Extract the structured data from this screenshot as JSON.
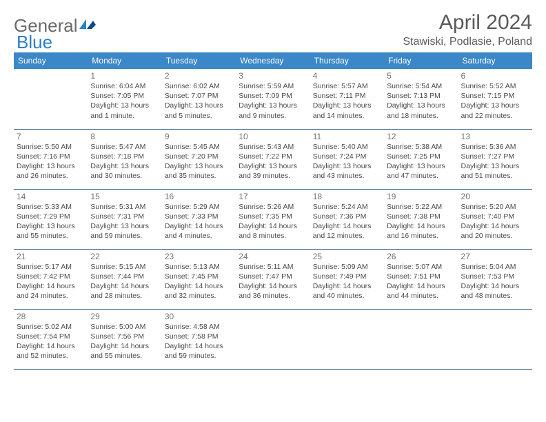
{
  "brand": {
    "part1": "General",
    "part2": "Blue"
  },
  "title": "April 2024",
  "location": "Stawiski, Podlasie, Poland",
  "colors": {
    "header_bg": "#3b87c8",
    "header_text": "#ffffff",
    "row_border": "#3b6a96",
    "text": "#4a4a4a",
    "page_bg": "#ffffff",
    "logo_blue": "#2a7fc9"
  },
  "weekdays": [
    "Sunday",
    "Monday",
    "Tuesday",
    "Wednesday",
    "Thursday",
    "Friday",
    "Saturday"
  ],
  "weeks": [
    [
      null,
      {
        "n": "1",
        "sr": "6:04 AM",
        "ss": "7:05 PM",
        "dl": "13 hours and 1 minute."
      },
      {
        "n": "2",
        "sr": "6:02 AM",
        "ss": "7:07 PM",
        "dl": "13 hours and 5 minutes."
      },
      {
        "n": "3",
        "sr": "5:59 AM",
        "ss": "7:09 PM",
        "dl": "13 hours and 9 minutes."
      },
      {
        "n": "4",
        "sr": "5:57 AM",
        "ss": "7:11 PM",
        "dl": "13 hours and 14 minutes."
      },
      {
        "n": "5",
        "sr": "5:54 AM",
        "ss": "7:13 PM",
        "dl": "13 hours and 18 minutes."
      },
      {
        "n": "6",
        "sr": "5:52 AM",
        "ss": "7:15 PM",
        "dl": "13 hours and 22 minutes."
      }
    ],
    [
      {
        "n": "7",
        "sr": "5:50 AM",
        "ss": "7:16 PM",
        "dl": "13 hours and 26 minutes."
      },
      {
        "n": "8",
        "sr": "5:47 AM",
        "ss": "7:18 PM",
        "dl": "13 hours and 30 minutes."
      },
      {
        "n": "9",
        "sr": "5:45 AM",
        "ss": "7:20 PM",
        "dl": "13 hours and 35 minutes."
      },
      {
        "n": "10",
        "sr": "5:43 AM",
        "ss": "7:22 PM",
        "dl": "13 hours and 39 minutes."
      },
      {
        "n": "11",
        "sr": "5:40 AM",
        "ss": "7:24 PM",
        "dl": "13 hours and 43 minutes."
      },
      {
        "n": "12",
        "sr": "5:38 AM",
        "ss": "7:25 PM",
        "dl": "13 hours and 47 minutes."
      },
      {
        "n": "13",
        "sr": "5:36 AM",
        "ss": "7:27 PM",
        "dl": "13 hours and 51 minutes."
      }
    ],
    [
      {
        "n": "14",
        "sr": "5:33 AM",
        "ss": "7:29 PM",
        "dl": "13 hours and 55 minutes."
      },
      {
        "n": "15",
        "sr": "5:31 AM",
        "ss": "7:31 PM",
        "dl": "13 hours and 59 minutes."
      },
      {
        "n": "16",
        "sr": "5:29 AM",
        "ss": "7:33 PM",
        "dl": "14 hours and 4 minutes."
      },
      {
        "n": "17",
        "sr": "5:26 AM",
        "ss": "7:35 PM",
        "dl": "14 hours and 8 minutes."
      },
      {
        "n": "18",
        "sr": "5:24 AM",
        "ss": "7:36 PM",
        "dl": "14 hours and 12 minutes."
      },
      {
        "n": "19",
        "sr": "5:22 AM",
        "ss": "7:38 PM",
        "dl": "14 hours and 16 minutes."
      },
      {
        "n": "20",
        "sr": "5:20 AM",
        "ss": "7:40 PM",
        "dl": "14 hours and 20 minutes."
      }
    ],
    [
      {
        "n": "21",
        "sr": "5:17 AM",
        "ss": "7:42 PM",
        "dl": "14 hours and 24 minutes."
      },
      {
        "n": "22",
        "sr": "5:15 AM",
        "ss": "7:44 PM",
        "dl": "14 hours and 28 minutes."
      },
      {
        "n": "23",
        "sr": "5:13 AM",
        "ss": "7:45 PM",
        "dl": "14 hours and 32 minutes."
      },
      {
        "n": "24",
        "sr": "5:11 AM",
        "ss": "7:47 PM",
        "dl": "14 hours and 36 minutes."
      },
      {
        "n": "25",
        "sr": "5:09 AM",
        "ss": "7:49 PM",
        "dl": "14 hours and 40 minutes."
      },
      {
        "n": "26",
        "sr": "5:07 AM",
        "ss": "7:51 PM",
        "dl": "14 hours and 44 minutes."
      },
      {
        "n": "27",
        "sr": "5:04 AM",
        "ss": "7:53 PM",
        "dl": "14 hours and 48 minutes."
      }
    ],
    [
      {
        "n": "28",
        "sr": "5:02 AM",
        "ss": "7:54 PM",
        "dl": "14 hours and 52 minutes."
      },
      {
        "n": "29",
        "sr": "5:00 AM",
        "ss": "7:56 PM",
        "dl": "14 hours and 55 minutes."
      },
      {
        "n": "30",
        "sr": "4:58 AM",
        "ss": "7:58 PM",
        "dl": "14 hours and 59 minutes."
      },
      null,
      null,
      null,
      null
    ]
  ],
  "labels": {
    "sunrise": "Sunrise:",
    "sunset": "Sunset:",
    "daylight": "Daylight:"
  }
}
